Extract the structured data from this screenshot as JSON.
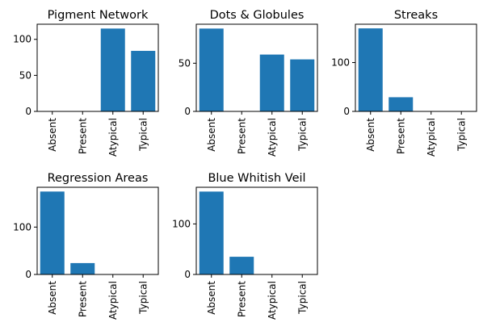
{
  "chart_data": [
    {
      "type": "bar",
      "title": "Pigment Network",
      "categories": [
        "Absent",
        "Present",
        "Atypical",
        "Typical"
      ],
      "values": [
        0,
        0,
        115,
        84
      ],
      "yticks": [
        0,
        50,
        100
      ],
      "ylim": [
        0,
        121
      ],
      "xlabel": "",
      "ylabel": "",
      "grid": false
    },
    {
      "type": "bar",
      "title": "Dots & Globules",
      "categories": [
        "Absent",
        "Present",
        "Atypical",
        "Typical"
      ],
      "values": [
        86,
        0,
        59,
        54
      ],
      "yticks": [
        0,
        50
      ],
      "ylim": [
        0,
        90.5
      ],
      "xlabel": "",
      "ylabel": "",
      "grid": false
    },
    {
      "type": "bar",
      "title": "Streaks",
      "categories": [
        "Absent",
        "Present",
        "Atypical",
        "Typical"
      ],
      "values": [
        170,
        29,
        0,
        0
      ],
      "yticks": [
        0,
        100
      ],
      "ylim": [
        0,
        178.5
      ],
      "xlabel": "",
      "ylabel": "",
      "grid": false
    },
    {
      "type": "bar",
      "title": "Regression Areas",
      "categories": [
        "Absent",
        "Present",
        "Atypical",
        "Typical"
      ],
      "values": [
        175,
        24,
        0,
        0
      ],
      "yticks": [
        0,
        100
      ],
      "ylim": [
        0,
        184
      ],
      "xlabel": "",
      "ylabel": "",
      "grid": false
    },
    {
      "type": "bar",
      "title": "Blue Whitish Veil",
      "categories": [
        "Absent",
        "Present",
        "Atypical",
        "Typical"
      ],
      "values": [
        164,
        35,
        0,
        0
      ],
      "yticks": [
        0,
        100
      ],
      "ylim": [
        0,
        172.5
      ],
      "xlabel": "",
      "ylabel": "",
      "grid": false
    }
  ],
  "colors": {
    "bar": "#1f77b4",
    "axis": "#000000",
    "background": "#ffffff"
  }
}
